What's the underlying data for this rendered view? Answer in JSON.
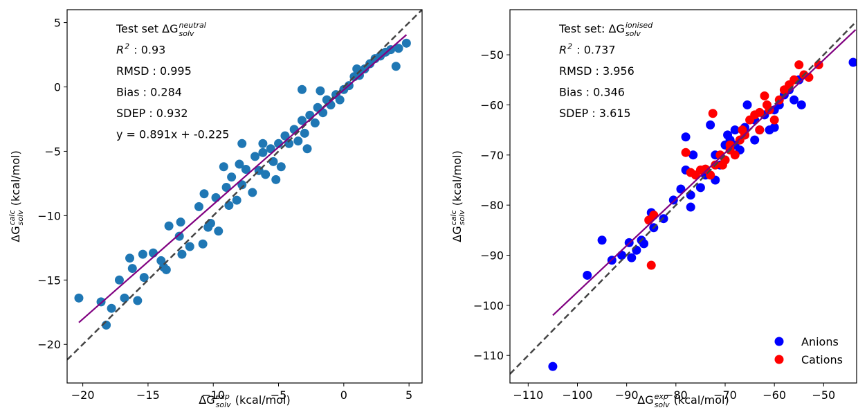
{
  "chart_data": [
    {
      "type": "scatter",
      "xlabel": {
        "text": "ΔG",
        "sup": "exp",
        "sub": "solv",
        "suffix": " (kcal/mol)"
      },
      "ylabel": {
        "text": "ΔG",
        "sup": "calc",
        "sub": "solv",
        "suffix": " (kcal/mol)"
      },
      "annotation": [
        {
          "text": "Test set ΔG",
          "sup": "neutral",
          "sub": "solv"
        },
        {
          "text": "R",
          "sup": "2",
          "suffix": " : 0.93",
          "italic": true
        },
        {
          "text": "RMSD : 0.995"
        },
        {
          "text": "Bias : 0.284"
        },
        {
          "text": "SDEP : 0.932"
        },
        {
          "text": "y = 0.891x + -0.225"
        }
      ],
      "xlim": [
        -21.2,
        6
      ],
      "ylim": [
        -23,
        6
      ],
      "xticks": [
        {
          "value": -20,
          "label": "−20"
        },
        {
          "value": -15,
          "label": "−15"
        },
        {
          "value": -10,
          "label": "−10"
        },
        {
          "value": -5,
          "label": "−5"
        },
        0,
        5
      ],
      "yticks": [
        {
          "value": -20,
          "label": "−20"
        },
        {
          "value": -15,
          "label": "−15"
        },
        {
          "value": -10,
          "label": "−10"
        },
        {
          "value": -5,
          "label": "−5"
        },
        0,
        5
      ],
      "identity_line": true,
      "fit_line": {
        "color": "#800080",
        "x": [
          -20.3,
          4.8
        ],
        "values": [
          -18.3,
          4.05
        ]
      },
      "series": [
        {
          "color": "#1f77b4",
          "x": [
            -20.3,
            -18.6,
            -18.2,
            -17.8,
            -17.2,
            -16.8,
            -16.4,
            -16.2,
            -15.8,
            -15.4,
            -15.3,
            -14.6,
            -14,
            -13.8,
            -13.4,
            -13.6,
            -12.5,
            -12.6,
            -12.4,
            -11.8,
            -10.8,
            -10.4,
            -9.8,
            -10.2,
            -9.6,
            -8.8,
            -8.6,
            -9,
            -7.8,
            -7.5,
            -7,
            -6.8,
            -6.5,
            -6.2,
            -6,
            -5.6,
            -5.4,
            -5,
            -4.8,
            -4.5,
            -4.2,
            -3.8,
            -3.5,
            -3.2,
            -3,
            -2.6,
            -2.2,
            -2,
            -1.6,
            -1.3,
            -1,
            -0.6,
            -0.3,
            0,
            0.4,
            0.8,
            1.2,
            1.6,
            2,
            2.4,
            2.8,
            3.2,
            3.6,
            4,
            4.2,
            4.8,
            -3.2,
            -7.8,
            -10.7,
            -11.1,
            -8,
            -5.2,
            -2.8,
            1,
            -1.8,
            -6.2,
            -9.2,
            -8.2
          ],
          "values": [
            -16.4,
            -16.7,
            -18.5,
            -17.2,
            -15,
            -16.4,
            -13.3,
            -14.1,
            -16.6,
            -13,
            -14.8,
            -12.9,
            -13.5,
            -14,
            -10.8,
            -14.2,
            -10.5,
            -11.6,
            -13,
            -12.4,
            -12.2,
            -10.9,
            -8.6,
            -10.6,
            -11.2,
            -9.2,
            -7,
            -7.8,
            -7.6,
            -6.4,
            -8.2,
            -5.4,
            -6.5,
            -5.1,
            -6.8,
            -4.8,
            -5.8,
            -4.4,
            -6.2,
            -3.8,
            -4.4,
            -3.3,
            -4.2,
            -2.6,
            -3.6,
            -2.2,
            -2.8,
            -1.6,
            -2,
            -1,
            -1.4,
            -0.6,
            -1,
            -0.2,
            0.1,
            0.8,
            0.9,
            1.4,
            1.8,
            2.2,
            2.4,
            2.7,
            2.9,
            1.6,
            3,
            3.4,
            -0.2,
            -4.4,
            -8.3,
            -9.3,
            -6,
            -7.2,
            -4.8,
            1.4,
            -0.3,
            -4.4,
            -6.2,
            -8.8
          ]
        }
      ]
    },
    {
      "type": "scatter",
      "xlabel": {
        "text": "ΔG",
        "sup": "exp",
        "sub": "solv",
        "suffix": " (kcal/mol)"
      },
      "ylabel": {
        "text": "ΔG",
        "sup": "calc",
        "sub": "solv",
        "suffix": " (kcal/mol)"
      },
      "annotation": [
        {
          "text": "Test set: ΔG",
          "sup": "ionised",
          "sub": "solv"
        },
        {
          "text": "R",
          "sup": "2",
          "suffix": " : 0.737",
          "italic": true
        },
        {
          "text": "RMSD : 3.956"
        },
        {
          "text": "Bias : 0.346"
        },
        {
          "text": "SDEP : 3.615"
        }
      ],
      "xlim": [
        -113.7,
        -43.3
      ],
      "ylim": [
        -115.5,
        -41
      ],
      "xticks": [
        {
          "value": -110,
          "label": "−110"
        },
        {
          "value": -100,
          "label": "−100"
        },
        {
          "value": -90,
          "label": "−90"
        },
        {
          "value": -80,
          "label": "−80"
        },
        {
          "value": -70,
          "label": "−70"
        },
        {
          "value": -60,
          "label": "−60"
        },
        {
          "value": -50,
          "label": "−50"
        }
      ],
      "yticks": [
        {
          "value": -110,
          "label": "−110"
        },
        {
          "value": -100,
          "label": "−100"
        },
        {
          "value": -90,
          "label": "−90"
        },
        {
          "value": -80,
          "label": "−80"
        },
        {
          "value": -70,
          "label": "−70"
        },
        {
          "value": -60,
          "label": "−60"
        },
        {
          "value": -50,
          "label": "−50"
        }
      ],
      "identity_line": true,
      "legend": "lower right",
      "fit_line": {
        "color": "#800080",
        "x": [
          -105,
          -43.5
        ],
        "values": [
          -102,
          -45
        ]
      },
      "series": [
        {
          "name": "Anions",
          "color": "#0000ff",
          "x": [
            -105,
            -98,
            -95,
            -93,
            -91,
            -89.5,
            -89,
            -88,
            -87,
            -86.5,
            -85,
            -84.5,
            -82.5,
            -80.5,
            -79,
            -78,
            -78,
            -77,
            -77,
            -76.5,
            -75,
            -73,
            -72,
            -71,
            -70,
            -69.5,
            -69,
            -68,
            -67,
            -66,
            -65.5,
            -64,
            -63,
            -62,
            -61,
            -60,
            -59,
            -58,
            -57,
            -55,
            -54.5,
            -44,
            -74,
            -72,
            -68,
            -66,
            -70,
            -64,
            -60,
            -56
          ],
          "values": [
            -112.2,
            -94,
            -87,
            -91,
            -90,
            -87.5,
            -90.5,
            -89,
            -87,
            -87.7,
            -81.5,
            -84.5,
            -82.7,
            -79,
            -76.8,
            -66.4,
            -73,
            -80.4,
            -78,
            -70,
            -76.5,
            -64,
            -70,
            -72,
            -68,
            -66,
            -67,
            -65,
            -69,
            -64.5,
            -60,
            -67,
            -65,
            -62,
            -65,
            -64.5,
            -60,
            -58,
            -57,
            -55,
            -60,
            -51.5,
            -74,
            -75,
            -68,
            -66,
            -71,
            -63,
            -61,
            -59
          ]
        },
        {
          "name": "Cations",
          "color": "#ff0000",
          "x": [
            -85.5,
            -85,
            -84.5,
            -78,
            -77,
            -76,
            -75,
            -74,
            -73,
            -72.5,
            -72,
            -71,
            -70,
            -69,
            -68,
            -67,
            -66,
            -65,
            -64,
            -63,
            -62,
            -61,
            -60,
            -59,
            -58,
            -57,
            -56,
            -55,
            -54,
            -53,
            -51,
            -70.5,
            -69,
            -66.5,
            -63,
            -61.5
          ],
          "values": [
            -83,
            -92,
            -82,
            -69.5,
            -73.5,
            -74,
            -73,
            -72.8,
            -74,
            -61.7,
            -72,
            -70,
            -71,
            -68,
            -70,
            -67,
            -66,
            -63,
            -62,
            -61.5,
            -58.2,
            -61,
            -63,
            -59,
            -57,
            -56,
            -55,
            -52,
            -54,
            -54.5,
            -52,
            -72,
            -69,
            -65,
            -65,
            -60
          ]
        }
      ]
    }
  ]
}
